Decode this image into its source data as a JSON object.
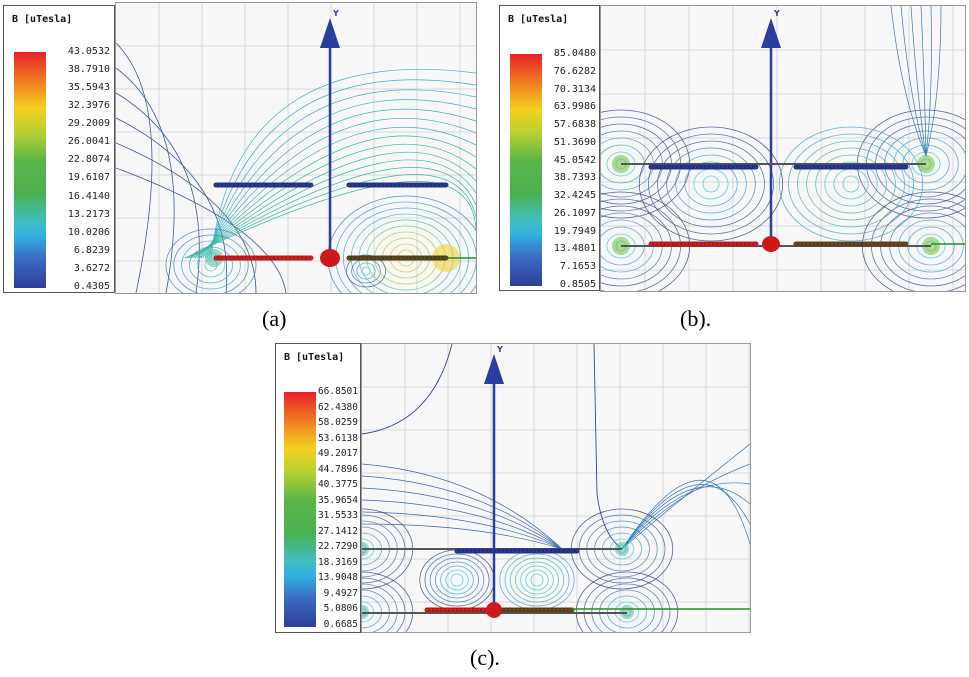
{
  "panels": [
    {
      "id": "a",
      "legend_title": "B [uTesla]",
      "legend_values": [
        "43.0532",
        "38.7910",
        "35.5943",
        "32.3976",
        "29.2009",
        "26.0041",
        "22.8074",
        "19.6107",
        "16.4140",
        "13.2173",
        "10.0206",
        "6.8239",
        "3.6272",
        "0.4305"
      ],
      "axis_label": "Y",
      "caption": "(a)"
    },
    {
      "id": "b",
      "legend_title": "B [uTesla]",
      "legend_values": [
        "85.0480",
        "76.6282",
        "70.3134",
        "63.9986",
        "57.6838",
        "51.3690",
        "45.0542",
        "38.7393",
        "32.4245",
        "26.1097",
        "19.7949",
        "13.4801",
        "7.1653",
        "0.8505"
      ],
      "axis_label": "Y",
      "caption": "(b)."
    },
    {
      "id": "c",
      "legend_title": "B [uTesla]",
      "legend_values": [
        "66.8501",
        "62.4380",
        "58.0259",
        "53.6138",
        "49.2017",
        "44.7896",
        "40.3775",
        "35.9654",
        "31.5533",
        "27.1412",
        "22.7290",
        "18.3169",
        "13.9048",
        "9.4927",
        "5.0806",
        "0.6685"
      ],
      "axis_label": "Y",
      "caption": "(c)."
    }
  ],
  "colors": {
    "axis_arrow": "#2a3ea0",
    "conductor_top": "#2a3a9a",
    "conductor_bottom": "#d02020",
    "ball": "#cc1a1a",
    "ground_line": "#2a8a2a"
  }
}
